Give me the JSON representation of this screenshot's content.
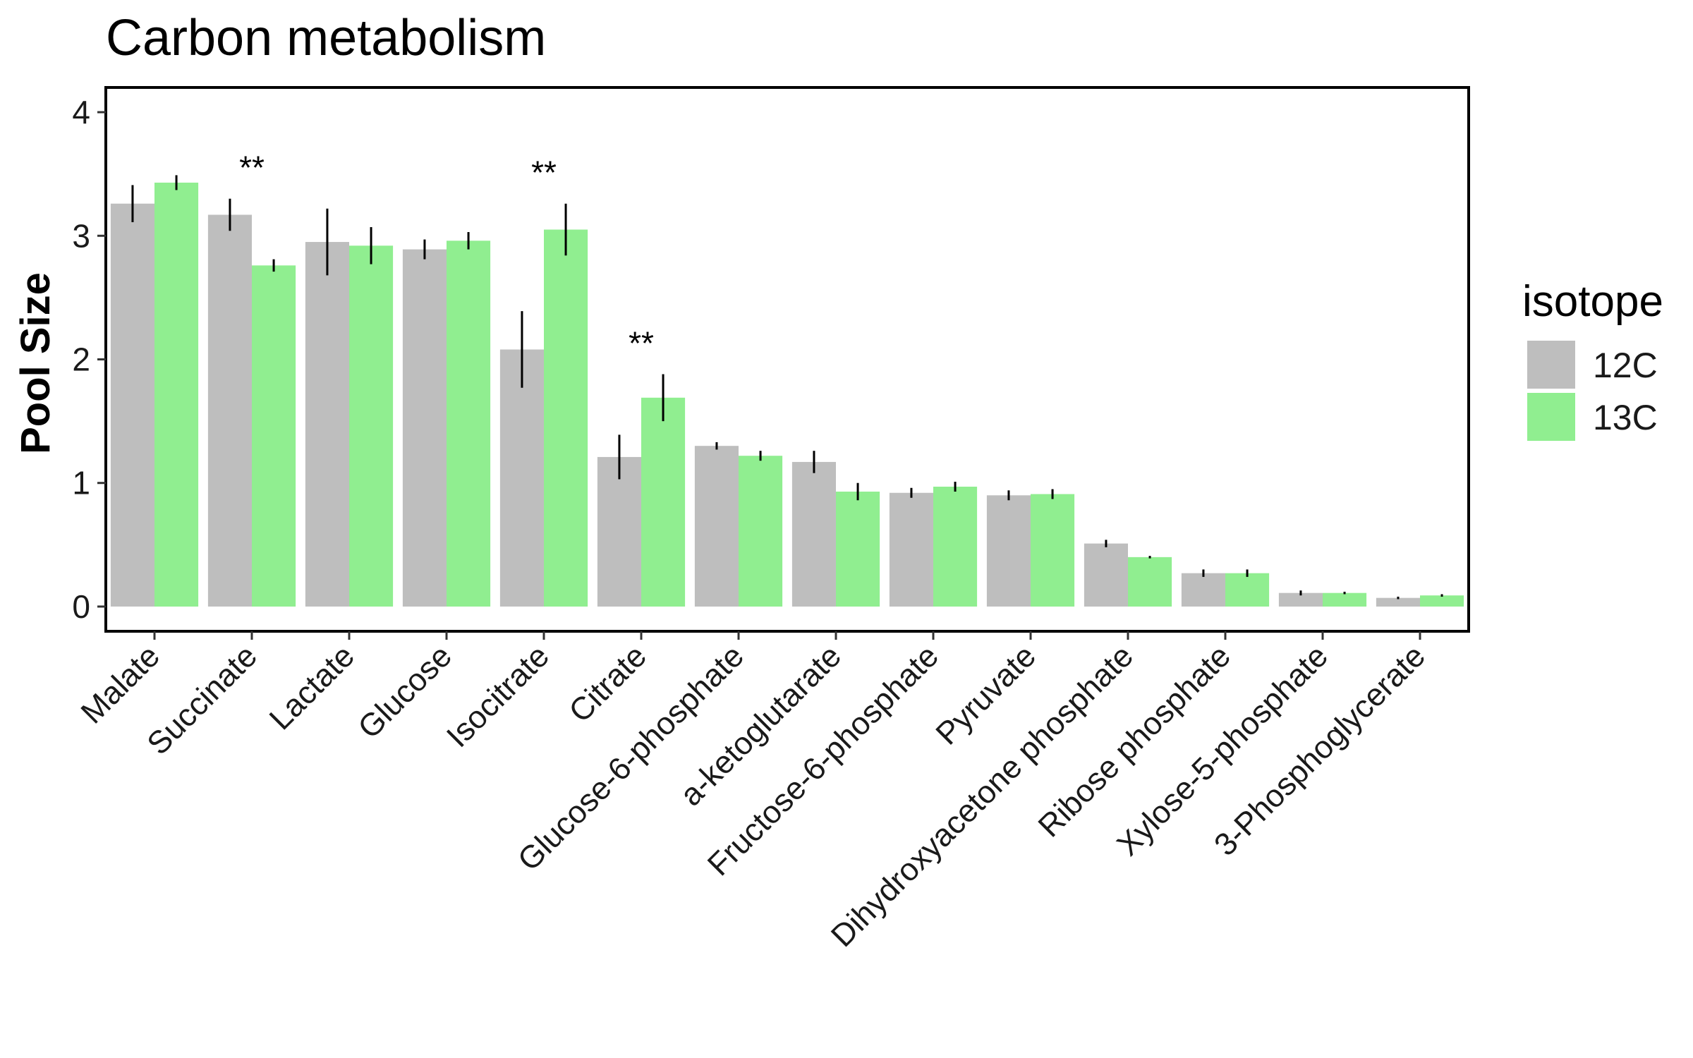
{
  "chart_data": {
    "type": "bar",
    "title": "Carbon metabolism",
    "xlabel": "",
    "ylabel": "Pool Size",
    "ylim": [
      -0.2,
      4.2
    ],
    "yticks": [
      0,
      1,
      2,
      3,
      4
    ],
    "grid": false,
    "categories": [
      "Malate",
      "Succinate",
      "Lactate",
      "Glucose",
      "Isocitrate",
      "Citrate",
      "Glucose-6-phosphate",
      "a-ketoglutarate",
      "Fructose-6-phosphate",
      "Pyruvate",
      "Dihydroxyacetone phosphate",
      "Ribose phosphate",
      "Xylose-5-phosphate",
      "3-Phosphoglycerate"
    ],
    "series": [
      {
        "name": "12C",
        "color": "#BEBEBE",
        "values": [
          3.26,
          3.17,
          2.95,
          2.89,
          2.08,
          1.21,
          1.3,
          1.17,
          0.92,
          0.9,
          0.51,
          0.27,
          0.11,
          0.07
        ],
        "error": [
          0.15,
          0.13,
          0.27,
          0.08,
          0.31,
          0.18,
          0.03,
          0.09,
          0.04,
          0.04,
          0.03,
          0.03,
          0.02,
          0.01
        ]
      },
      {
        "name": "13C",
        "color": "#90EE90",
        "values": [
          3.43,
          2.76,
          2.92,
          2.96,
          3.05,
          1.69,
          1.22,
          0.93,
          0.97,
          0.91,
          0.4,
          0.27,
          0.11,
          0.09
        ],
        "error": [
          0.06,
          0.05,
          0.15,
          0.07,
          0.21,
          0.19,
          0.04,
          0.07,
          0.04,
          0.04,
          0.01,
          0.03,
          0.01,
          0.01
        ]
      }
    ],
    "significance": [
      {
        "category": "Succinate",
        "label": "**"
      },
      {
        "category": "Isocitrate",
        "label": "**"
      },
      {
        "category": "Citrate",
        "label": "**"
      }
    ],
    "legend": {
      "title": "isotope",
      "placement": "right"
    }
  }
}
